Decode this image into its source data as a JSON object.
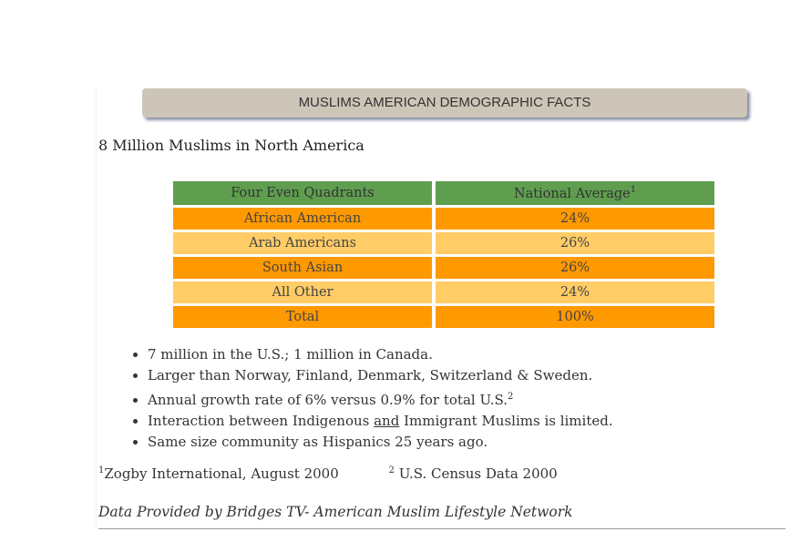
{
  "banner": "MUSLIMS AMERICAN DEMOGRAPHIC FACTS",
  "subtitle": "8 Million Muslims in North America",
  "table": {
    "headers": [
      "Four Even Quadrants",
      "National Average"
    ],
    "header_sup": "1",
    "rows": [
      {
        "label": "African American",
        "value": "24%"
      },
      {
        "label": "Arab Americans",
        "value": "26%"
      },
      {
        "label": "South Asian",
        "value": "26%"
      },
      {
        "label": "All Other",
        "value": "24%"
      },
      {
        "label": "Total",
        "value": "100%"
      }
    ]
  },
  "bullets": {
    "b1": "7 million in the U.S.; 1 million in Canada.",
    "b2": "Larger than Norway, Finland, Denmark, Switzerland & Sweden.",
    "b3": "Annual growth rate of 6% versus 0.9% for total U.S.",
    "b3_sup": "2",
    "b4_pre": "Interaction between Indigenous ",
    "b4_u": "and",
    "b4_post": " Immigrant Muslims is limited.",
    "b5": "Same size community as Hispanics 25 years ago."
  },
  "footnotes": [
    {
      "sup": "1",
      "text": "Zogby International, August 2000"
    },
    {
      "sup": "2",
      "text": " U.S. Census Data 2000"
    }
  ],
  "credit": "Data Provided by Bridges TV- American Muslim Lifestyle Network",
  "colors": {
    "header": "#5f9e4f",
    "row_dark": "#ff9900",
    "row_light": "#ffcc66",
    "banner": "#cdc6b8"
  }
}
